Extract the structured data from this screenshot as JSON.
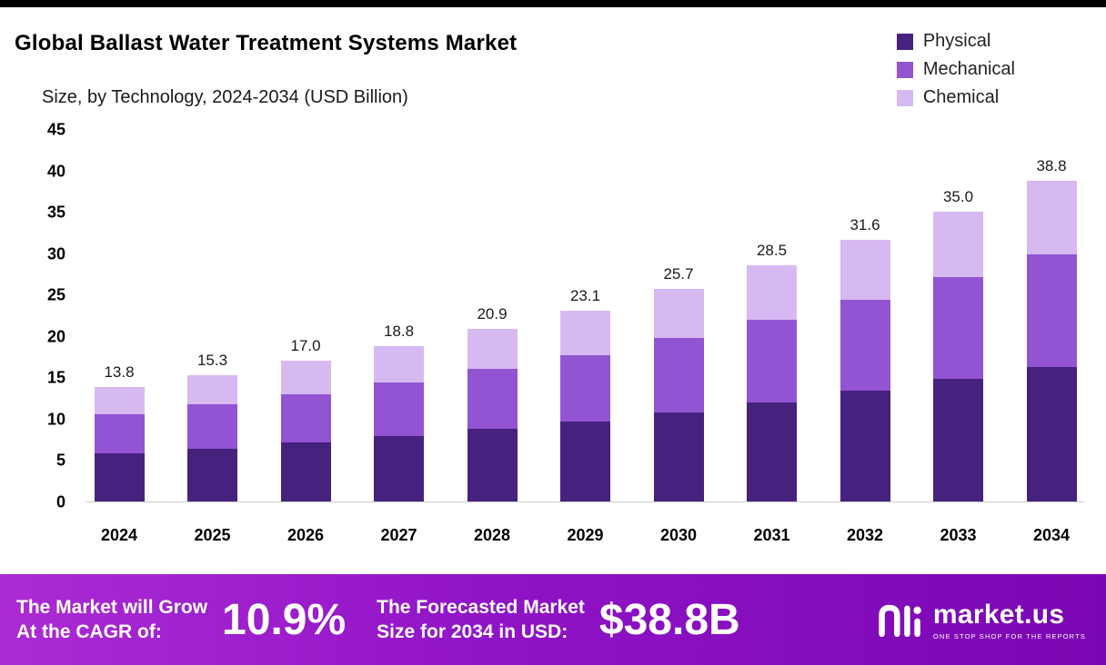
{
  "chart_data": {
    "type": "bar",
    "stacked": true,
    "title": "Global Ballast Water Treatment Systems Market",
    "subtitle": "Size, by Technology, 2024-2034 (USD Billion)",
    "categories": [
      "2024",
      "2025",
      "2026",
      "2027",
      "2028",
      "2029",
      "2030",
      "2031",
      "2032",
      "2033",
      "2034"
    ],
    "total_labels": [
      "13.8",
      "15.3",
      "17.0",
      "18.8",
      "20.9",
      "23.1",
      "25.7",
      "28.5",
      "31.6",
      "35.0",
      "38.8"
    ],
    "totals": [
      13.8,
      15.3,
      17.0,
      18.8,
      20.9,
      23.1,
      25.7,
      28.5,
      31.6,
      35.0,
      38.8
    ],
    "series": [
      {
        "name": "Physical",
        "color": "#46217e",
        "values": [
          5.8,
          6.4,
          7.1,
          7.9,
          8.8,
          9.7,
          10.8,
          12.0,
          13.4,
          14.8,
          16.3
        ]
      },
      {
        "name": "Mechanical",
        "color": "#9254d2",
        "values": [
          4.7,
          5.3,
          5.9,
          6.5,
          7.2,
          8.0,
          9.0,
          10.0,
          11.0,
          12.3,
          13.6
        ]
      },
      {
        "name": "Chemical",
        "color": "#d7b9f2",
        "values": [
          3.3,
          3.6,
          4.0,
          4.4,
          4.9,
          5.4,
          5.9,
          6.5,
          7.2,
          7.9,
          8.9
        ]
      }
    ],
    "ylim": [
      0,
      45
    ],
    "yticks": [
      0,
      5,
      10,
      15,
      20,
      25,
      30,
      35,
      40,
      45
    ],
    "grid": false,
    "legend_position": "top-right"
  },
  "banner": {
    "cagr_label_line1": "The Market will Grow",
    "cagr_label_line2": "At the CAGR of:",
    "cagr_value": "10.9%",
    "forecast_label_line1": "The Forecasted Market",
    "forecast_label_line2": "Size for 2034 in USD:",
    "forecast_value": "$38.8B",
    "logo_text": "market.us",
    "logo_tagline": "ONE STOP SHOP FOR THE REPORTS"
  },
  "colors": {
    "physical": "#46217e",
    "mechanical": "#9254d2",
    "chemical": "#d7b9f2",
    "banner_gradient_start": "#ab2bd4",
    "banner_gradient_end": "#7a07b3",
    "top_bar": "#000000"
  }
}
